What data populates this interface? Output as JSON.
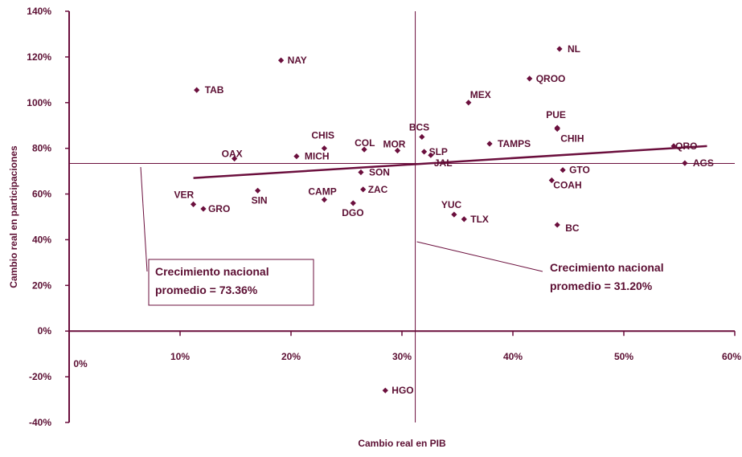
{
  "chart_data": {
    "type": "scatter",
    "title": "",
    "xlabel": "Cambio real en PIB",
    "ylabel": "Cambio real en participaciones",
    "xlim": [
      0,
      60
    ],
    "ylim": [
      -40,
      140
    ],
    "x_ticks": [
      0,
      10,
      20,
      30,
      40,
      50,
      60
    ],
    "y_ticks": [
      -40,
      -20,
      0,
      20,
      40,
      60,
      80,
      100,
      120,
      140
    ],
    "x_tick_labels": [
      "0%",
      "10%",
      "20%",
      "30%",
      "40%",
      "50%",
      "60%"
    ],
    "y_tick_labels": [
      "-40%",
      "-20%",
      "0%",
      "20%",
      "40%",
      "60%",
      "80%",
      "100%",
      "120%",
      "140%"
    ],
    "grid": false,
    "legend": "none",
    "reference_lines": {
      "x": 31.2,
      "y": 73.36
    },
    "trendline": {
      "x": [
        11.2,
        57.5
      ],
      "y": [
        67,
        81
      ]
    },
    "annotations": [
      {
        "id": "nacional-y",
        "lines": [
          "Crecimiento nacional",
          "promedio = 73.36%"
        ]
      },
      {
        "id": "nacional-x",
        "lines": [
          "Crecimiento nacional",
          "promedio = 31.20%"
        ]
      }
    ],
    "points": [
      {
        "label": "NL",
        "x": 44.2,
        "y": 123.5
      },
      {
        "label": "NAY",
        "x": 19.1,
        "y": 118.5
      },
      {
        "label": "QROO",
        "x": 41.5,
        "y": 110.5
      },
      {
        "label": "TAB",
        "x": 11.5,
        "y": 105.5
      },
      {
        "label": "MEX",
        "x": 36.0,
        "y": 100.0
      },
      {
        "label": "PUE",
        "x": 44.0,
        "y": 89.0
      },
      {
        "label": "CHIH",
        "x": 44.0,
        "y": 88.5
      },
      {
        "label": "BCS",
        "x": 31.8,
        "y": 85.0
      },
      {
        "label": "TAMPS",
        "x": 37.9,
        "y": 82.0
      },
      {
        "label": "QRO",
        "x": 54.5,
        "y": 81.0
      },
      {
        "label": "CHIS",
        "x": 23.0,
        "y": 80.0
      },
      {
        "label": "COL",
        "x": 26.6,
        "y": 79.5
      },
      {
        "label": "MOR",
        "x": 29.6,
        "y": 79.0
      },
      {
        "label": "SLP",
        "x": 32.0,
        "y": 78.5
      },
      {
        "label": "JAL",
        "x": 32.6,
        "y": 77.0
      },
      {
        "label": "MICH",
        "x": 20.5,
        "y": 76.5
      },
      {
        "label": "OAX",
        "x": 14.9,
        "y": 75.5
      },
      {
        "label": "AGS",
        "x": 55.5,
        "y": 73.5
      },
      {
        "label": "GTO",
        "x": 44.5,
        "y": 70.5
      },
      {
        "label": "SON",
        "x": 26.3,
        "y": 69.5
      },
      {
        "label": "COAH",
        "x": 43.5,
        "y": 66.0
      },
      {
        "label": "ZAC",
        "x": 26.5,
        "y": 62.0
      },
      {
        "label": "SIN",
        "x": 17.0,
        "y": 61.5
      },
      {
        "label": "CAMP",
        "x": 23.0,
        "y": 57.5
      },
      {
        "label": "DGO",
        "x": 25.6,
        "y": 56.0
      },
      {
        "label": "VER",
        "x": 11.2,
        "y": 55.5
      },
      {
        "label": "GRO",
        "x": 12.1,
        "y": 53.5
      },
      {
        "label": "YUC",
        "x": 34.7,
        "y": 51.0
      },
      {
        "label": "TLX",
        "x": 35.6,
        "y": 49.0
      },
      {
        "label": "BC",
        "x": 44.0,
        "y": 46.5
      },
      {
        "label": "HGO",
        "x": 28.5,
        "y": -26.0
      }
    ],
    "colors": {
      "primary": "#6b0f3d",
      "text": "#5c0f33",
      "background": "#ffffff"
    }
  }
}
